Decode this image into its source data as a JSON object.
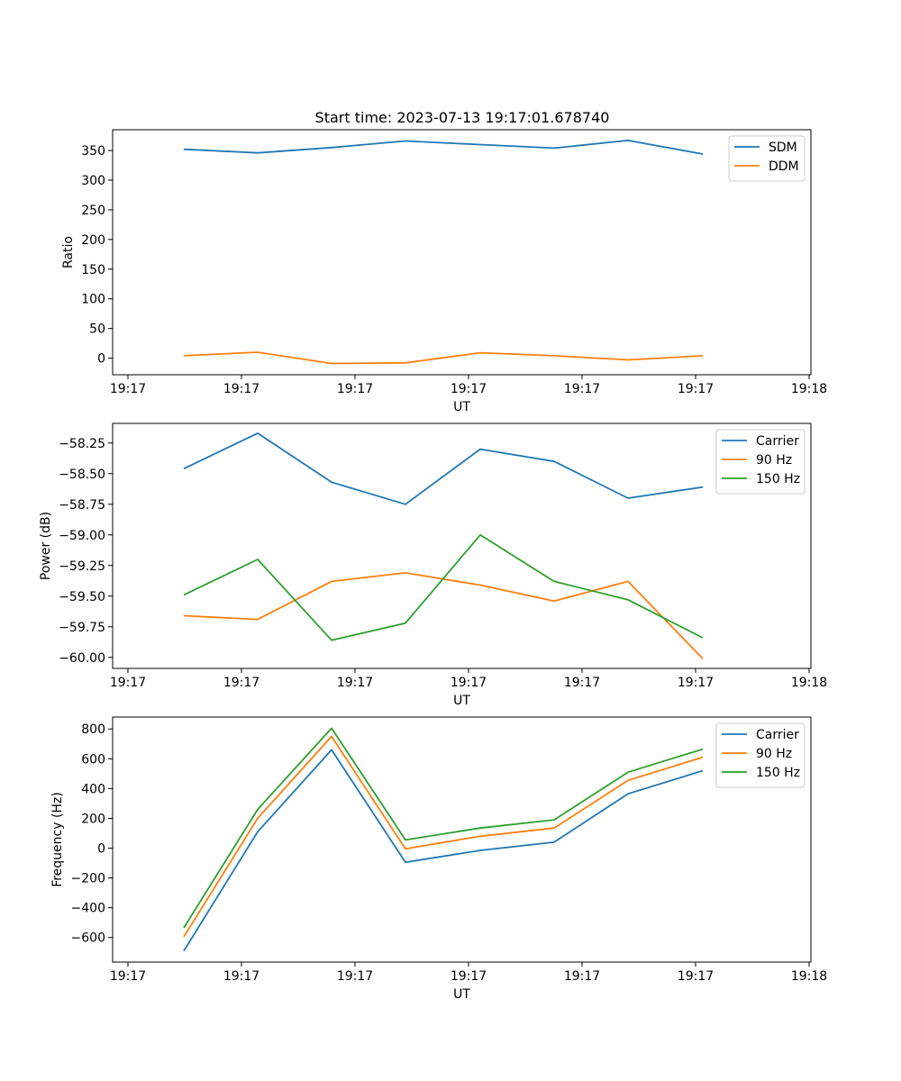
{
  "title": "Start time: 2023-07-13 19:17:01.678740",
  "chart_data": [
    {
      "type": "line",
      "xlabel": "UT",
      "ylabel": "Ratio",
      "x_tick_labels": [
        "19:17",
        "19:17",
        "19:17",
        "19:17",
        "19:17",
        "19:17",
        "19:17",
        "19:18"
      ],
      "ylim": [
        -28,
        385
      ],
      "yticks": [
        0,
        50,
        100,
        150,
        200,
        250,
        300,
        350
      ],
      "ytick_labels": [
        "0",
        "50",
        "100",
        "150",
        "200",
        "250",
        "300",
        "350"
      ],
      "legend_position": "top-right",
      "series": [
        {
          "name": "SDM",
          "color": "#1f77b4",
          "values": [
            352,
            346,
            355,
            366,
            360,
            354,
            367,
            344
          ]
        },
        {
          "name": "DDM",
          "color": "#ff7f0e",
          "values": [
            4,
            10,
            -9,
            -8,
            9,
            4,
            -3,
            4
          ]
        }
      ]
    },
    {
      "type": "line",
      "xlabel": "UT",
      "ylabel": "Power (dB)",
      "x_tick_labels": [
        "19:17",
        "19:17",
        "19:17",
        "19:17",
        "19:17",
        "19:17",
        "19:17",
        "19:18"
      ],
      "ylim": [
        -60.09,
        -58.09
      ],
      "yticks": [
        -60.0,
        -59.75,
        -59.5,
        -59.25,
        -59.0,
        -58.75,
        -58.5,
        -58.25
      ],
      "ytick_labels": [
        "−60.00",
        "−59.75",
        "−59.50",
        "−59.25",
        "−59.00",
        "−58.75",
        "−58.50",
        "−58.25"
      ],
      "legend_position": "top-right",
      "series": [
        {
          "name": "Carrier",
          "color": "#1f77b4",
          "values": [
            -58.46,
            -58.17,
            -58.57,
            -58.75,
            -58.3,
            -58.4,
            -58.7,
            -58.61
          ]
        },
        {
          "name": "90 Hz",
          "color": "#ff7f0e",
          "values": [
            -59.66,
            -59.69,
            -59.38,
            -59.31,
            -59.41,
            -59.54,
            -59.38,
            -60.01
          ]
        },
        {
          "name": "150 Hz",
          "color": "#2ca02c",
          "values": [
            -59.49,
            -59.2,
            -59.86,
            -59.72,
            -59.0,
            -59.38,
            -59.53,
            -59.84
          ]
        }
      ]
    },
    {
      "type": "line",
      "xlabel": "UT",
      "ylabel": "Frequency (Hz)",
      "x_tick_labels": [
        "19:17",
        "19:17",
        "19:17",
        "19:17",
        "19:17",
        "19:17",
        "19:17",
        "19:18"
      ],
      "ylim": [
        -765,
        880
      ],
      "yticks": [
        -600,
        -400,
        -200,
        0,
        200,
        400,
        600,
        800
      ],
      "ytick_labels": [
        "−600",
        "−400",
        "−200",
        "0",
        "200",
        "400",
        "600",
        "800"
      ],
      "legend_position": "top-right",
      "series": [
        {
          "name": "Carrier",
          "color": "#1f77b4",
          "values": [
            -690,
            110,
            660,
            -95,
            -15,
            40,
            365,
            520
          ]
        },
        {
          "name": "90 Hz",
          "color": "#ff7f0e",
          "values": [
            -595,
            200,
            750,
            -5,
            80,
            135,
            455,
            610
          ]
        },
        {
          "name": "150 Hz",
          "color": "#2ca02c",
          "values": [
            -535,
            260,
            805,
            55,
            135,
            190,
            510,
            665
          ]
        }
      ]
    }
  ]
}
